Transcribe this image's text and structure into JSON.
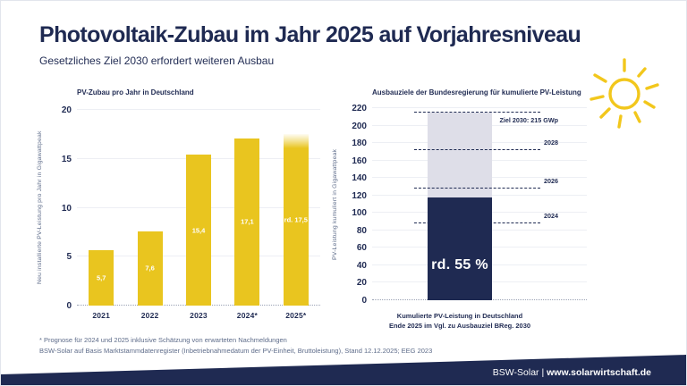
{
  "header": {
    "title": "Photovoltaik-Zubau im Jahr 2025 auf Vorjahresniveau",
    "subtitle": "Gesetzliches Ziel 2030 erfordert weiteren Ausbau"
  },
  "colors": {
    "navy": "#1f2a52",
    "yellow": "#e9c51f",
    "sun_yellow": "#f2c71c",
    "gap_gray": "#dedee8",
    "gridline": "#edeff4",
    "footnote_gray": "#5e6c8a"
  },
  "icons": {
    "sun": "sun-icon"
  },
  "chart_data": [
    {
      "type": "bar",
      "title": "PV-Zubau pro Jahr in Deutschland",
      "ylabel": "Neu installierte PV-Leistung pro Jahr in Gigawattpeak",
      "ylim": [
        0,
        20
      ],
      "yticks": [
        0,
        5,
        10,
        15,
        20
      ],
      "grid": true,
      "categories": [
        "2021",
        "2022",
        "2023",
        "2024*",
        "2025*"
      ],
      "values": [
        5.7,
        7.6,
        15.4,
        17.1,
        17.5
      ],
      "bar_labels": [
        "5,7",
        "7,6",
        "15,4",
        "17,1",
        "rd. 17,5"
      ],
      "faded_bar_index": 4
    },
    {
      "type": "stacked-bar",
      "title": "Ausbauziele der Bundesregierung für kumulierte PV-Leistung",
      "ylabel": "PV-Leistung kumuliert in Gigawattpeak",
      "ylim": [
        0,
        220
      ],
      "yticks": [
        0,
        20,
        40,
        60,
        80,
        100,
        120,
        140,
        160,
        180,
        200,
        220
      ],
      "grid": true,
      "xlabel_lines": [
        "Kumulierte PV-Leistung in Deutschland",
        "Ende 2025 im Vgl. zu Ausbauziel BReg. 2030"
      ],
      "segments": [
        {
          "name": "Kumulierte PV-Leistung Ende 2025",
          "value": 118,
          "label": "rd. 55 %",
          "color": "navy"
        },
        {
          "name": "Lücke bis Ausbauziel 2030",
          "value": 97,
          "label": "",
          "color": "gap_gray"
        }
      ],
      "targets": [
        {
          "label": "Ziel 2030: 215 GWp",
          "value": 215,
          "label_position": "below"
        },
        {
          "label": "2028",
          "value": 172,
          "label_position": "above"
        },
        {
          "label": "2026",
          "value": 128,
          "label_position": "above"
        },
        {
          "label": "2024",
          "value": 88,
          "label_position": "above"
        }
      ]
    }
  ],
  "footnotes": [
    "* Prognose für 2024 und 2025 inklusive Schätzung von erwarteten Nachmeldungen",
    "BSW-Solar auf Basis Marktstammdatenregister (Inbetriebnahmedatum der PV-Einheit, Bruttoleistung), Stand 12.12.2025; EEG 2023"
  ],
  "footer": {
    "brand": "BSW-Solar",
    "separator": " | ",
    "url": "www.solarwirtschaft.de"
  }
}
